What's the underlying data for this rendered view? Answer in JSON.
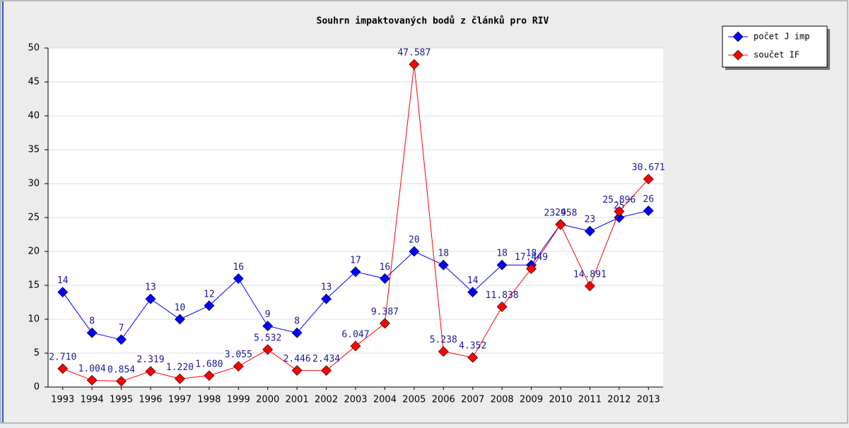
{
  "chart_data": {
    "type": "line",
    "title": "Souhrn impaktovaných bodů z článků pro RIV",
    "categories": [
      "1993",
      "1994",
      "1995",
      "1996",
      "1997",
      "1998",
      "1999",
      "2000",
      "2001",
      "2002",
      "2003",
      "2004",
      "2005",
      "2006",
      "2007",
      "2008",
      "2009",
      "2010",
      "2011",
      "2012",
      "2013"
    ],
    "series": [
      {
        "name": "počet J imp",
        "color": "#0000ff",
        "values": [
          14,
          8,
          7,
          13,
          10,
          12,
          16,
          9,
          8,
          13,
          17,
          16,
          20,
          18,
          14,
          18,
          18,
          24,
          23,
          25,
          26
        ]
      },
      {
        "name": "součet IF",
        "color": "#ff0000",
        "values": [
          2.71,
          1.004,
          0.854,
          2.319,
          1.22,
          1.68,
          3.055,
          5.532,
          2.446,
          2.434,
          6.047,
          9.387,
          47.587,
          5.238,
          4.352,
          11.838,
          17.449,
          23.958,
          14.891,
          25.896,
          30.671
        ],
        "value_labels": [
          "2.710",
          "1.004",
          "0.854",
          "2.319",
          "1.220",
          "1.680",
          "3.055",
          "5.532",
          "2.446",
          "2.434",
          "6.047",
          "9.387",
          "47.587",
          "5.238",
          "4.352",
          "11.838",
          "17.449",
          "23.958",
          "14.891",
          "25.896",
          "30.671"
        ]
      }
    ],
    "ylim": [
      0,
      50
    ],
    "yticks": [
      0,
      5,
      10,
      15,
      20,
      25,
      30,
      35,
      40,
      45,
      50
    ],
    "grid": true,
    "legend": "top-right"
  }
}
